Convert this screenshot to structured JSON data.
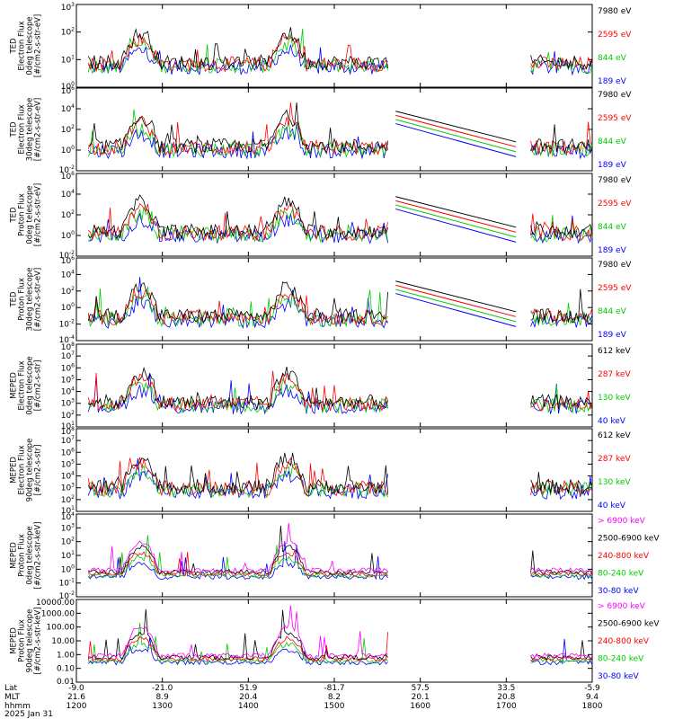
{
  "chart_data": {
    "type": "line",
    "x_ticks": [
      "1200",
      "1300",
      "1400",
      "1500",
      "1600",
      "1700",
      "1800"
    ],
    "x_range": [
      "1200",
      "1800"
    ],
    "x_axis_rows": [
      {
        "label": "Lat",
        "values": [
          "-9.0",
          "-21.0",
          "51.9",
          "-81.7",
          "57.5",
          "33.5",
          "-5.9"
        ]
      },
      {
        "label": "MLT",
        "values": [
          "21.6",
          "8.9",
          "20.4",
          "8.2",
          "20.1",
          "20.8",
          "9.4"
        ]
      },
      {
        "label": "hhmm",
        "values": [
          "1200",
          "1300",
          "1400",
          "1500",
          "1600",
          "1700",
          "1800"
        ]
      }
    ],
    "date_label": "2025 Jan 31",
    "panels": [
      {
        "title": "TED",
        "ylabel_lines": [
          "TED",
          "Electron Flux",
          "0deg telescope",
          "[#/cm2-s-str-eV]"
        ],
        "ylog": true,
        "ylim": [
          1,
          1000
        ],
        "yticks": [
          "10^0",
          "10^1",
          "10^2",
          "10^3"
        ],
        "series": [
          {
            "name": "7980 eV",
            "color": "#000000"
          },
          {
            "name": "2595 eV",
            "color": "#ff0000"
          },
          {
            "name": "844 eV",
            "color": "#00cc00"
          },
          {
            "name": "189 eV",
            "color": "#0000ff"
          }
        ]
      },
      {
        "title": "TED",
        "ylabel_lines": [
          "TED",
          "Electron Flux",
          "30deg telescope",
          "[#/cm2-s-str-eV]"
        ],
        "ylog": true,
        "ylim": [
          0.01,
          1000000
        ],
        "yticks": [
          "10^-2",
          "10^0",
          "10^2",
          "10^4",
          "10^6"
        ],
        "series": [
          {
            "name": "7980 eV",
            "color": "#000000"
          },
          {
            "name": "2595 eV",
            "color": "#ff0000"
          },
          {
            "name": "844 eV",
            "color": "#00cc00"
          },
          {
            "name": "189 eV",
            "color": "#0000ff"
          }
        ]
      },
      {
        "title": "TED",
        "ylabel_lines": [
          "TED",
          "Proton Flux",
          "0deg telescope",
          "[#/cm2-s-str-eV]"
        ],
        "ylog": true,
        "ylim": [
          0.01,
          1000000
        ],
        "yticks": [
          "10^-2",
          "10^0",
          "10^2",
          "10^4",
          "10^6"
        ],
        "series": [
          {
            "name": "7980 eV",
            "color": "#000000"
          },
          {
            "name": "2595 eV",
            "color": "#ff0000"
          },
          {
            "name": "844 eV",
            "color": "#00cc00"
          },
          {
            "name": "189 eV",
            "color": "#0000ff"
          }
        ]
      },
      {
        "title": "TED",
        "ylabel_lines": [
          "TED",
          "Proton Flux",
          "30deg telescope",
          "[#/cm2-s-str-eV]"
        ],
        "ylog": true,
        "ylim": [
          0.0001,
          1000000
        ],
        "yticks": [
          "10^-4",
          "10^-2",
          "10^0",
          "10^2",
          "10^4",
          "10^6"
        ],
        "series": [
          {
            "name": "7980 eV",
            "color": "#000000"
          },
          {
            "name": "2595 eV",
            "color": "#ff0000"
          },
          {
            "name": "844 eV",
            "color": "#00cc00"
          },
          {
            "name": "189 eV",
            "color": "#0000ff"
          }
        ]
      },
      {
        "title": "MEPED",
        "ylabel_lines": [
          "MEPED",
          "Electron Flux",
          "0deg telescope",
          "[#/cm2-s-str]"
        ],
        "ylog": true,
        "ylim": [
          10,
          100000000
        ],
        "yticks": [
          "10^1",
          "10^2",
          "10^3",
          "10^4",
          "10^5",
          "10^6",
          "10^7",
          "10^8"
        ],
        "series": [
          {
            "name": "612 keV",
            "color": "#000000"
          },
          {
            "name": "287 keV",
            "color": "#ff0000"
          },
          {
            "name": "130 keV",
            "color": "#00cc00"
          },
          {
            "name": "40 keV",
            "color": "#0000ff"
          }
        ]
      },
      {
        "title": "MEPED",
        "ylabel_lines": [
          "MEPED",
          "Electron Flux",
          "90deg telescope",
          "[#/cm2-s-str]"
        ],
        "ylog": true,
        "ylim": [
          10,
          100000000
        ],
        "yticks": [
          "10^1",
          "10^2",
          "10^3",
          "10^4",
          "10^5",
          "10^6",
          "10^7",
          "10^8"
        ],
        "series": [
          {
            "name": "612 keV",
            "color": "#000000"
          },
          {
            "name": "287 keV",
            "color": "#ff0000"
          },
          {
            "name": "130 keV",
            "color": "#00cc00"
          },
          {
            "name": "40 keV",
            "color": "#0000ff"
          }
        ]
      },
      {
        "title": "MEPED",
        "ylabel_lines": [
          "MEPED",
          "Proton Flux",
          "0deg telescope",
          "[#/cm2-s-str-keV]"
        ],
        "ylog": true,
        "ylim": [
          0.01,
          10000
        ],
        "yticks": [
          "10^-2",
          "10^-1",
          "10^0",
          "10^1",
          "10^2",
          "10^3",
          "10^4"
        ],
        "series": [
          {
            "name": "> 6900 keV",
            "color": "#ff00ff"
          },
          {
            "name": "2500-6900 keV",
            "color": "#000000"
          },
          {
            "name": "240-800 keV",
            "color": "#ff0000"
          },
          {
            "name": "80-240 keV",
            "color": "#00cc00"
          },
          {
            "name": "30-80 keV",
            "color": "#0000ff"
          }
        ]
      },
      {
        "title": "MEPED",
        "ylabel_lines": [
          "MEPED",
          "Proton Flux",
          "90deg telescope",
          "[#/cm2-s-str-keV]"
        ],
        "ylog": true,
        "ylim": [
          0.01,
          10000
        ],
        "yticks": [
          "0.01",
          "0.10",
          "1.00",
          "10.00",
          "100.00",
          "1000.00",
          "10000.00"
        ],
        "series": [
          {
            "name": "> 6900 keV",
            "color": "#ff00ff"
          },
          {
            "name": "2500-6900 keV",
            "color": "#000000"
          },
          {
            "name": "240-800 keV",
            "color": "#ff0000"
          },
          {
            "name": "80-240 keV",
            "color": "#00cc00"
          },
          {
            "name": "30-80 keV",
            "color": "#0000ff"
          }
        ]
      }
    ]
  }
}
